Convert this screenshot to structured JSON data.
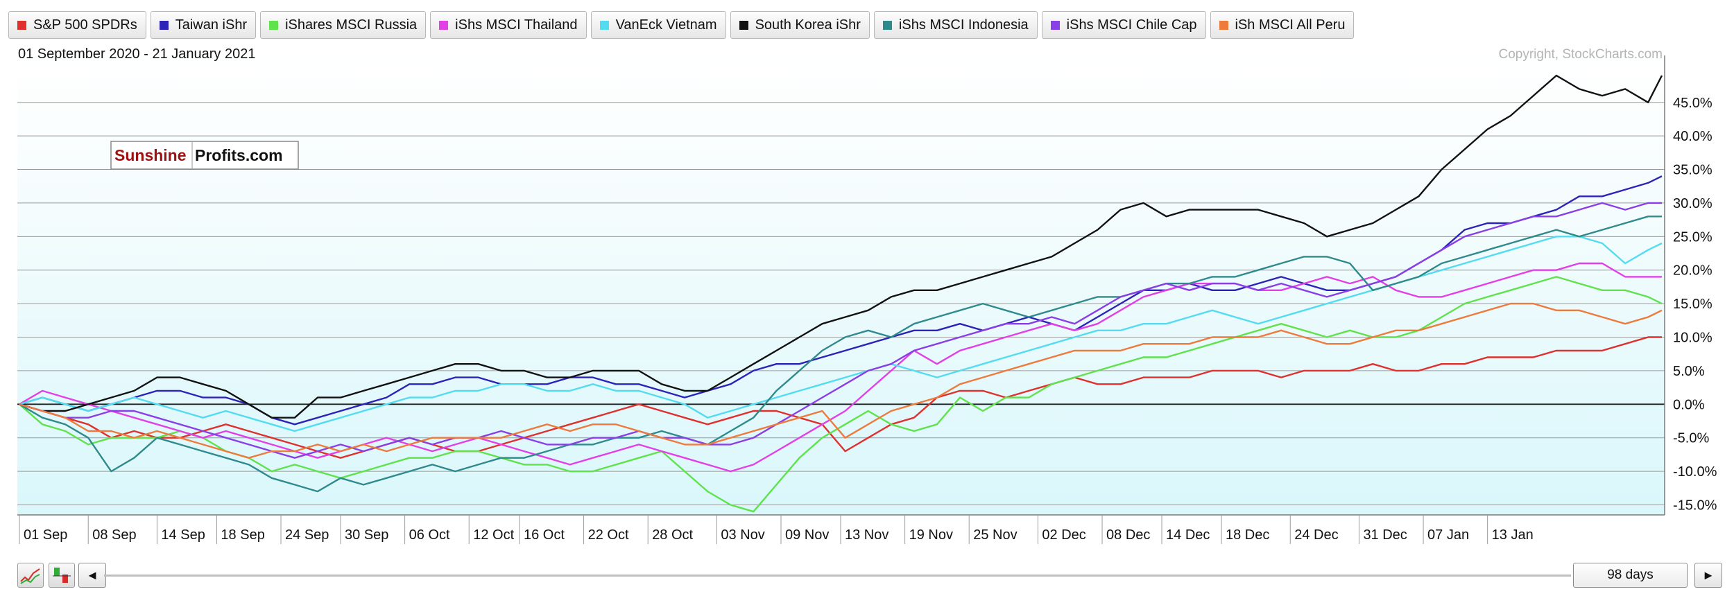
{
  "legend": [
    {
      "name": "S&P 500 SPDRs",
      "color": "#e0302d"
    },
    {
      "name": "Taiwan iShr",
      "color": "#2d23b6"
    },
    {
      "name": "iShares MSCI Russia",
      "color": "#5fe24b"
    },
    {
      "name": "iShs MSCI Thailand",
      "color": "#e23fe6"
    },
    {
      "name": "VanEck Vietnam",
      "color": "#53dcf0"
    },
    {
      "name": "South Korea iShr",
      "color": "#111111"
    },
    {
      "name": "iShs MSCI Indonesia",
      "color": "#2f8a8c"
    },
    {
      "name": "iShs MSCI Chile Cap",
      "color": "#8a3ee6"
    },
    {
      "name": "iSh MSCI All Peru",
      "color": "#ee7a3c"
    }
  ],
  "date_range": "01 September 2020 - 21 January 2021",
  "copyright": "Copyright, StockCharts.com",
  "logo": {
    "part1": "Sunshine",
    "part2": "Profits.com"
  },
  "bottom": {
    "days_label": "98 days",
    "left_arrow": "◄",
    "right_arrow": "►"
  },
  "chart_data": {
    "type": "line",
    "x_tick_labels": [
      "01 Sep",
      "08 Sep",
      "14 Sep",
      "18 Sep",
      "24 Sep",
      "30 Sep",
      "06 Oct",
      "12 Oct",
      "16 Oct",
      "22 Oct",
      "28 Oct",
      "03 Nov",
      "09 Nov",
      "13 Nov",
      "19 Nov",
      "25 Nov",
      "02 Dec",
      "08 Dec",
      "14 Dec",
      "18 Dec",
      "24 Dec",
      "31 Dec",
      "07 Jan",
      "13 Jan"
    ],
    "y_ticks": [
      -15,
      -10,
      -5,
      0,
      5,
      10,
      15,
      20,
      25,
      30,
      35,
      40,
      45
    ],
    "y_tick_labels": [
      "-15.0%",
      "-10.0%",
      "-5.0%",
      "0.0%",
      "5.0%",
      "10.0%",
      "15.0%",
      "20.0%",
      "25.0%",
      "30.0%",
      "35.0%",
      "40.0%",
      "45.0%"
    ],
    "ylim": [
      -16.5,
      52
    ],
    "x_points": [
      0,
      5,
      10,
      15,
      20,
      25,
      30,
      35,
      40,
      45,
      50,
      55,
      60,
      65,
      70,
      75,
      80,
      85,
      90,
      95,
      100,
      105,
      110,
      115,
      120,
      125,
      130,
      135,
      140,
      145,
      150,
      155,
      160,
      165,
      170,
      175,
      180,
      185,
      190,
      195,
      200,
      205,
      210,
      215,
      220,
      225,
      230,
      235,
      240,
      245,
      250,
      255,
      260,
      265,
      270,
      275,
      280,
      285,
      290,
      295,
      300,
      305,
      310,
      315,
      320,
      325,
      330,
      335,
      340,
      345,
      350,
      355,
      358
    ],
    "x_tick_positions": [
      0,
      15,
      30,
      43,
      57,
      70,
      84,
      98,
      109,
      123,
      137,
      152,
      166,
      179,
      193,
      207,
      222,
      236,
      249,
      262,
      277,
      292,
      306,
      320
    ],
    "series": [
      {
        "name": "S&P 500 SPDRs",
        "color": "#e0302d",
        "values": [
          0,
          -1,
          -2,
          -3,
          -5,
          -4,
          -5,
          -5,
          -4,
          -3,
          -4,
          -5,
          -6,
          -7,
          -8,
          -7,
          -6,
          -5,
          -6,
          -7,
          -7,
          -6,
          -5,
          -4,
          -3,
          -2,
          -1,
          0,
          -1,
          -2,
          -3,
          -2,
          -1,
          -1,
          -2,
          -3,
          -7,
          -5,
          -3,
          -2,
          1,
          2,
          2,
          1,
          2,
          3,
          4,
          3,
          3,
          4,
          4,
          4,
          5,
          5,
          5,
          4,
          5,
          5,
          5,
          6,
          5,
          5,
          6,
          6,
          7,
          7,
          7,
          8,
          8,
          8,
          9,
          10,
          10
        ]
      },
      {
        "name": "Taiwan iShr",
        "color": "#2d23b6",
        "values": [
          0,
          1,
          0,
          -1,
          0,
          1,
          2,
          2,
          1,
          1,
          0,
          -2,
          -3,
          -2,
          -1,
          0,
          1,
          3,
          3,
          4,
          4,
          3,
          3,
          3,
          4,
          4,
          3,
          3,
          2,
          1,
          2,
          3,
          5,
          6,
          6,
          7,
          8,
          9,
          10,
          11,
          11,
          12,
          11,
          12,
          13,
          12,
          11,
          13,
          15,
          17,
          17,
          18,
          17,
          17,
          18,
          19,
          18,
          17,
          17,
          18,
          19,
          21,
          23,
          26,
          27,
          27,
          28,
          29,
          31,
          31,
          32,
          33,
          34
        ]
      },
      {
        "name": "iShares MSCI Russia",
        "color": "#5fe24b",
        "values": [
          0,
          -3,
          -4,
          -6,
          -5,
          -5,
          -5,
          -4,
          -5,
          -7,
          -8,
          -10,
          -9,
          -10,
          -11,
          -10,
          -9,
          -8,
          -8,
          -7,
          -7,
          -8,
          -9,
          -9,
          -10,
          -10,
          -9,
          -8,
          -7,
          -10,
          -13,
          -15,
          -16,
          -12,
          -8,
          -5,
          -3,
          -1,
          -3,
          -4,
          -3,
          1,
          -1,
          1,
          1,
          3,
          4,
          5,
          6,
          7,
          7,
          8,
          9,
          10,
          11,
          12,
          11,
          10,
          11,
          10,
          10,
          11,
          13,
          15,
          16,
          17,
          18,
          19,
          18,
          17,
          17,
          16,
          15
        ]
      },
      {
        "name": "iShs MSCI Thailand",
        "color": "#e23fe6",
        "values": [
          0,
          2,
          1,
          0,
          -1,
          -2,
          -3,
          -4,
          -5,
          -4,
          -5,
          -6,
          -7,
          -8,
          -7,
          -6,
          -5,
          -6,
          -7,
          -6,
          -5,
          -6,
          -7,
          -8,
          -9,
          -8,
          -7,
          -6,
          -7,
          -8,
          -9,
          -10,
          -9,
          -7,
          -5,
          -3,
          -1,
          2,
          5,
          8,
          6,
          8,
          9,
          10,
          11,
          12,
          11,
          12,
          14,
          16,
          17,
          18,
          18,
          18,
          17,
          17,
          18,
          19,
          18,
          19,
          17,
          16,
          16,
          17,
          18,
          19,
          20,
          20,
          21,
          21,
          19,
          19,
          19
        ]
      },
      {
        "name": "VanEck Vietnam",
        "color": "#53dcf0",
        "values": [
          0,
          1,
          0,
          -1,
          0,
          1,
          0,
          -1,
          -2,
          -1,
          -2,
          -3,
          -4,
          -3,
          -2,
          -1,
          0,
          1,
          1,
          2,
          2,
          3,
          3,
          2,
          2,
          3,
          2,
          2,
          1,
          0,
          -2,
          -1,
          0,
          1,
          2,
          3,
          4,
          5,
          6,
          5,
          4,
          5,
          6,
          7,
          8,
          9,
          10,
          11,
          11,
          12,
          12,
          13,
          14,
          13,
          12,
          13,
          14,
          15,
          16,
          17,
          18,
          19,
          20,
          21,
          22,
          23,
          24,
          25,
          25,
          24,
          21,
          23,
          24
        ]
      },
      {
        "name": "South Korea iShr",
        "color": "#111111",
        "values": [
          0,
          -1,
          -1,
          0,
          1,
          2,
          4,
          4,
          3,
          2,
          0,
          -2,
          -2,
          1,
          1,
          2,
          3,
          4,
          5,
          6,
          6,
          5,
          5,
          4,
          4,
          5,
          5,
          5,
          3,
          2,
          2,
          4,
          6,
          8,
          10,
          12,
          13,
          14,
          16,
          17,
          17,
          18,
          19,
          20,
          21,
          22,
          24,
          26,
          29,
          30,
          28,
          29,
          29,
          29,
          29,
          28,
          27,
          25,
          26,
          27,
          29,
          31,
          35,
          38,
          41,
          43,
          46,
          49,
          47,
          46,
          47,
          45,
          49
        ]
      },
      {
        "name": "iShs MSCI Indonesia",
        "color": "#2f8a8c",
        "values": [
          0,
          -2,
          -3,
          -5,
          -10,
          -8,
          -5,
          -6,
          -7,
          -8,
          -9,
          -11,
          -12,
          -13,
          -11,
          -12,
          -11,
          -10,
          -9,
          -10,
          -9,
          -8,
          -8,
          -7,
          -6,
          -6,
          -5,
          -5,
          -4,
          -5,
          -6,
          -4,
          -2,
          2,
          5,
          8,
          10,
          11,
          10,
          12,
          13,
          14,
          15,
          14,
          13,
          14,
          15,
          16,
          16,
          17,
          18,
          18,
          19,
          19,
          20,
          21,
          22,
          22,
          21,
          17,
          18,
          19,
          21,
          22,
          23,
          24,
          25,
          26,
          25,
          26,
          27,
          28,
          28
        ]
      },
      {
        "name": "iShs MSCI Chile Cap",
        "color": "#8a3ee6",
        "values": [
          0,
          -1,
          -2,
          -2,
          -1,
          -1,
          -2,
          -3,
          -4,
          -5,
          -6,
          -7,
          -8,
          -7,
          -6,
          -7,
          -6,
          -5,
          -6,
          -5,
          -5,
          -4,
          -5,
          -6,
          -6,
          -5,
          -5,
          -4,
          -5,
          -5,
          -6,
          -6,
          -5,
          -3,
          -1,
          1,
          3,
          5,
          6,
          8,
          9,
          10,
          11,
          12,
          12,
          13,
          12,
          14,
          16,
          17,
          18,
          17,
          18,
          18,
          17,
          18,
          17,
          16,
          17,
          18,
          19,
          21,
          23,
          25,
          26,
          27,
          28,
          28,
          29,
          30,
          29,
          30,
          30
        ]
      },
      {
        "name": "iSh MSCI All Peru",
        "color": "#ee7a3c",
        "values": [
          0,
          -1,
          -2,
          -4,
          -4,
          -5,
          -4,
          -5,
          -6,
          -7,
          -8,
          -7,
          -7,
          -6,
          -7,
          -6,
          -7,
          -6,
          -5,
          -5,
          -5,
          -5,
          -4,
          -3,
          -4,
          -3,
          -3,
          -4,
          -5,
          -6,
          -6,
          -5,
          -4,
          -3,
          -2,
          -1,
          -5,
          -3,
          -1,
          0,
          1,
          3,
          4,
          5,
          6,
          7,
          8,
          8,
          8,
          9,
          9,
          9,
          10,
          10,
          10,
          11,
          10,
          9,
          9,
          10,
          11,
          11,
          12,
          13,
          14,
          15,
          15,
          14,
          14,
          13,
          12,
          13,
          14
        ]
      }
    ]
  }
}
